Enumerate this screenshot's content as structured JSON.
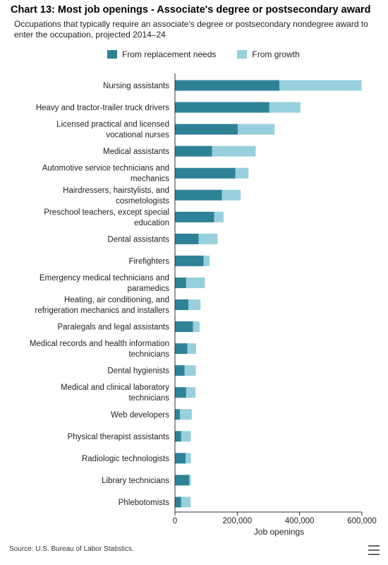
{
  "title": "Chart 13: Most job openings - Associate's degree or postsecondary award",
  "subtitle": "Occupations that typically require an associate's degree or postsecondary nondegree award to enter the occupation, projected 2014–24",
  "source": "Source: U.S. Bureau of Labor Statistics.",
  "menu_icon": "hamburger-menu-icon",
  "colors": {
    "replacement": "#2e8296",
    "growth": "#98cfdc",
    "axis": "#333333"
  },
  "chart_data": {
    "type": "bar",
    "orientation": "horizontal",
    "stacked": true,
    "title": "Chart 13: Most job openings - Associate's degree or postsecondary award",
    "xlabel": "Job openings",
    "ylabel": "",
    "xlim": [
      0,
      600000
    ],
    "xticks": [
      0,
      200000,
      400000,
      600000
    ],
    "xtick_labels": [
      "0",
      "200,000",
      "400,000",
      "600,000"
    ],
    "grid": false,
    "legend_position": "top",
    "categories": [
      [
        "Nursing assistants"
      ],
      [
        "Heavy and tractor-trailer truck drivers"
      ],
      [
        "Licensed practical and licensed",
        "vocational nurses"
      ],
      [
        "Medical assistants"
      ],
      [
        "Automotive service technicians and",
        "mechanics"
      ],
      [
        "Hairdressers, hairstylists, and",
        "cosmetologists"
      ],
      [
        "Preschool teachers, except special",
        "education"
      ],
      [
        "Dental assistants"
      ],
      [
        "Firefighters"
      ],
      [
        "Emergency medical technicians and",
        "paramedics"
      ],
      [
        "Heating, air conditioning, and",
        "refrigeration mechanics and installers"
      ],
      [
        "Paralegals and legal assistants"
      ],
      [
        "Medical records and health information",
        "technicians"
      ],
      [
        "Dental hygienists"
      ],
      [
        "Medical and clinical laboratory",
        "technicians"
      ],
      [
        "Web developers"
      ],
      [
        "Physical therapist assistants"
      ],
      [
        "Radiologic technologists"
      ],
      [
        "Library technicians"
      ],
      [
        "Phlebotomists"
      ]
    ],
    "series": [
      {
        "name": "From replacement needs",
        "values": [
          335000,
          303000,
          202000,
          119000,
          194000,
          151000,
          126000,
          76000,
          92000,
          36000,
          43000,
          58000,
          40000,
          31000,
          36000,
          16000,
          20000,
          34000,
          46000,
          20000
        ]
      },
      {
        "name": "From growth",
        "values": [
          264000,
          100000,
          118000,
          140000,
          42000,
          60000,
          30000,
          61000,
          19000,
          60000,
          39000,
          21000,
          28000,
          36000,
          30000,
          38000,
          31000,
          17000,
          5000,
          30000
        ]
      }
    ]
  }
}
